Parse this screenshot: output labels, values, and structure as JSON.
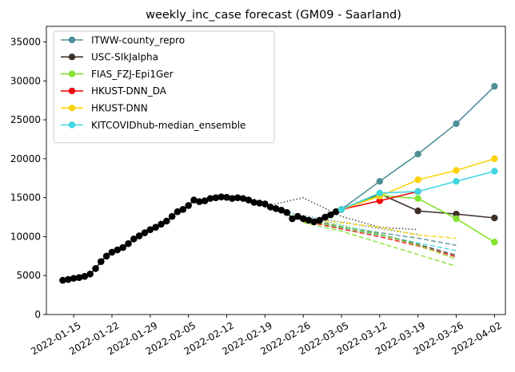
{
  "chart_data": {
    "type": "line",
    "title": "weekly_inc_case forecast (GM09 - Saarland)",
    "xlabel": "",
    "ylabel": "",
    "x_range": [
      "2022-01-10",
      "2022-04-04"
    ],
    "ylim": [
      0,
      37000
    ],
    "x_ticks": [
      "2022-01-15",
      "2022-01-22",
      "2022-01-29",
      "2022-02-05",
      "2022-02-12",
      "2022-02-19",
      "2022-02-26",
      "2022-03-05",
      "2022-03-12",
      "2022-03-19",
      "2022-03-26",
      "2022-04-02"
    ],
    "y_ticks": [
      0,
      5000,
      10000,
      15000,
      20000,
      25000,
      30000,
      35000
    ],
    "grid": false,
    "legend_position": "top-left",
    "truth": {
      "color": "#000000",
      "x": [
        "2022-01-13",
        "2022-01-14",
        "2022-01-15",
        "2022-01-16",
        "2022-01-17",
        "2022-01-18",
        "2022-01-19",
        "2022-01-20",
        "2022-01-21",
        "2022-01-22",
        "2022-01-23",
        "2022-01-24",
        "2022-01-25",
        "2022-01-26",
        "2022-01-27",
        "2022-01-28",
        "2022-01-29",
        "2022-01-30",
        "2022-01-31",
        "2022-02-01",
        "2022-02-02",
        "2022-02-03",
        "2022-02-04",
        "2022-02-05",
        "2022-02-06",
        "2022-02-07",
        "2022-02-08",
        "2022-02-09",
        "2022-02-10",
        "2022-02-11",
        "2022-02-12",
        "2022-02-13",
        "2022-02-14",
        "2022-02-15",
        "2022-02-16",
        "2022-02-17",
        "2022-02-18",
        "2022-02-19",
        "2022-02-20",
        "2022-02-21",
        "2022-02-22",
        "2022-02-23",
        "2022-02-24",
        "2022-02-25",
        "2022-02-26",
        "2022-02-27",
        "2022-02-28",
        "2022-03-01",
        "2022-03-02",
        "2022-03-03",
        "2022-03-04",
        "2022-03-05"
      ],
      "y": [
        4400,
        4500,
        4650,
        4750,
        4900,
        5200,
        5900,
        6800,
        7500,
        8000,
        8300,
        8600,
        9100,
        9700,
        10100,
        10500,
        10900,
        11200,
        11600,
        12000,
        12600,
        13200,
        13500,
        14000,
        14700,
        14500,
        14600,
        14900,
        15000,
        15100,
        15050,
        14900,
        15000,
        14900,
        14700,
        14400,
        14300,
        14200,
        13800,
        13600,
        13400,
        13100,
        12300,
        12600,
        12300,
        12100,
        11900,
        12100,
        12500,
        12800,
        13200,
        13500
      ]
    },
    "series": [
      {
        "name": "ITWW-county_repro",
        "color": "#4e9097",
        "x": [
          "2022-03-05",
          "2022-03-12",
          "2022-03-19",
          "2022-03-26",
          "2022-04-02"
        ],
        "values": [
          13500,
          17100,
          20600,
          24500,
          29300
        ]
      },
      {
        "name": "USC-SIkJalpha",
        "color": "#3e2f27",
        "x": [
          "2022-03-05",
          "2022-03-12",
          "2022-03-19",
          "2022-03-26",
          "2022-04-02"
        ],
        "values": [
          13500,
          15500,
          13300,
          12900,
          12400
        ]
      },
      {
        "name": "FIAS_FZJ-Epi1Ger",
        "color": "#84e32e",
        "x": [
          "2022-03-05",
          "2022-03-12",
          "2022-03-19",
          "2022-03-26",
          "2022-04-02"
        ],
        "values": [
          13500,
          15300,
          14900,
          12300,
          9300
        ]
      },
      {
        "name": "HKUST-DNN_DA",
        "color": "#f20a0a",
        "x": [
          "2022-03-05",
          "2022-03-12",
          "2022-03-19"
        ],
        "values": [
          13500,
          14600,
          15800
        ]
      },
      {
        "name": "HKUST-DNN",
        "color": "#fdd208",
        "x": [
          "2022-03-05",
          "2022-03-12",
          "2022-03-19",
          "2022-03-26",
          "2022-04-02"
        ],
        "values": [
          13500,
          15200,
          17300,
          18500,
          20000
        ]
      },
      {
        "name": "KITCOVIDhub-median_ensemble",
        "color": "#3fd6df",
        "x": [
          "2022-03-05",
          "2022-03-12",
          "2022-03-19",
          "2022-03-26",
          "2022-04-02"
        ],
        "values": [
          13500,
          15600,
          15800,
          17100,
          18400
        ]
      }
    ],
    "past_forecasts": [
      {
        "style": "dotted",
        "color": "#333333",
        "x": [
          "2022-02-19",
          "2022-02-26",
          "2022-03-05",
          "2022-03-12",
          "2022-03-19"
        ],
        "values": [
          13900,
          15000,
          12600,
          11200,
          10900
        ]
      },
      {
        "style": "dotted",
        "color": "#4e9097",
        "x": [
          "2022-02-19",
          "2022-02-26",
          "2022-03-05",
          "2022-03-12",
          "2022-03-19"
        ],
        "values": [
          13800,
          12700,
          11900,
          11000,
          10300
        ]
      },
      {
        "style": "dotted",
        "color": "#84e32e",
        "x": [
          "2022-02-19",
          "2022-02-26",
          "2022-03-05",
          "2022-03-12"
        ],
        "values": [
          13700,
          12300,
          11000,
          10100
        ]
      },
      {
        "style": "dotted",
        "color": "#3fd6df",
        "x": [
          "2022-02-19",
          "2022-02-26",
          "2022-03-05",
          "2022-03-12"
        ],
        "values": [
          13800,
          12600,
          11500,
          10500
        ]
      },
      {
        "style": "dashed",
        "color": "#fdd208",
        "x": [
          "2022-02-26",
          "2022-03-05",
          "2022-03-12",
          "2022-03-19",
          "2022-03-26"
        ],
        "values": [
          12300,
          11800,
          11200,
          10200,
          9800
        ]
      },
      {
        "style": "dashed",
        "color": "#4e9097",
        "x": [
          "2022-02-26",
          "2022-03-05",
          "2022-03-12",
          "2022-03-19",
          "2022-03-26"
        ],
        "values": [
          12100,
          11200,
          10500,
          9800,
          8900
        ]
      },
      {
        "style": "dashed",
        "color": "#3fd6df",
        "x": [
          "2022-02-26",
          "2022-03-05",
          "2022-03-12",
          "2022-03-19",
          "2022-03-26"
        ],
        "values": [
          12200,
          11200,
          10200,
          9200,
          8200
        ]
      },
      {
        "style": "dashed",
        "color": "#3e2f27",
        "x": [
          "2022-02-26",
          "2022-03-05",
          "2022-03-12",
          "2022-03-19",
          "2022-03-26"
        ],
        "values": [
          12300,
          11300,
          10300,
          9000,
          7600
        ]
      },
      {
        "style": "dashed",
        "color": "#f20a0a",
        "x": [
          "2022-02-26",
          "2022-03-05",
          "2022-03-12",
          "2022-03-19",
          "2022-03-26"
        ],
        "values": [
          12000,
          11000,
          10000,
          8800,
          7400
        ]
      },
      {
        "style": "dashed",
        "color": "#84e32e",
        "x": [
          "2022-02-26",
          "2022-03-05",
          "2022-03-12",
          "2022-03-19",
          "2022-03-26"
        ],
        "values": [
          11800,
          10700,
          9200,
          7700,
          6200
        ]
      },
      {
        "style": "dashed",
        "color": "#84e32e",
        "x": [
          "2022-02-26",
          "2022-03-05",
          "2022-03-12",
          "2022-03-19",
          "2022-03-26"
        ],
        "values": [
          12100,
          11300,
          10300,
          8900,
          7100
        ]
      }
    ]
  }
}
